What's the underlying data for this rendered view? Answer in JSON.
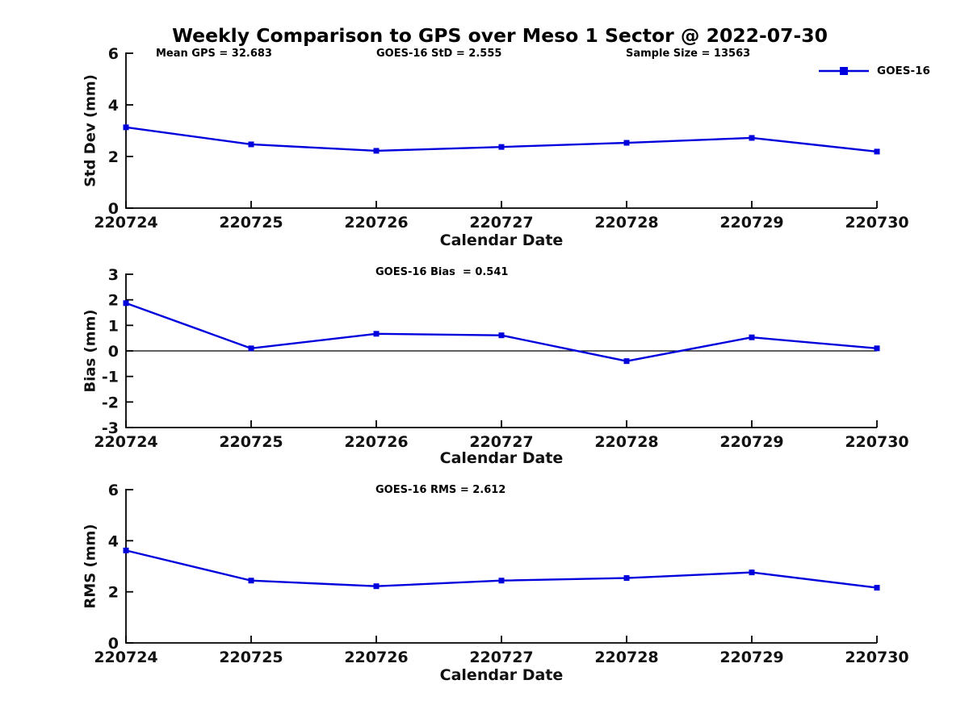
{
  "title": "Weekly Comparison to GPS over Meso 1 Sector @ 2022-07-30",
  "legend": {
    "label": "GOES-16"
  },
  "colors": {
    "series": "#0000dd",
    "axis": "#000000",
    "text": "#111111"
  },
  "categories": [
    "220724",
    "220725",
    "220726",
    "220727",
    "220728",
    "220729",
    "220730"
  ],
  "chart_data": [
    {
      "type": "line",
      "name": "std-dev",
      "title": "",
      "ylabel": "Std Dev (mm)",
      "xlabel": "Calendar Date",
      "ylim": [
        0,
        6
      ],
      "yticks": [
        0,
        2,
        4,
        6
      ],
      "zero_line": false,
      "grid": false,
      "annotations": [
        "Mean GPS = 32.683",
        "GOES-16 StD = 2.555",
        "Sample Size = 13563"
      ],
      "x": [
        "220724",
        "220725",
        "220726",
        "220727",
        "220728",
        "220729",
        "220730"
      ],
      "series": [
        {
          "name": "GOES-16",
          "values": [
            3.13,
            2.47,
            2.22,
            2.37,
            2.53,
            2.72,
            2.19
          ]
        }
      ]
    },
    {
      "type": "line",
      "name": "bias",
      "title": "",
      "ylabel": "Bias (mm)",
      "xlabel": "Calendar Date",
      "ylim": [
        -3,
        3
      ],
      "yticks": [
        3,
        2,
        1,
        0,
        -1,
        -2,
        -3
      ],
      "zero_line": true,
      "grid": false,
      "annotations": [
        "GOES-16 Bias  = 0.541"
      ],
      "x": [
        "220724",
        "220725",
        "220726",
        "220727",
        "220728",
        "220729",
        "220730"
      ],
      "series": [
        {
          "name": "GOES-16",
          "values": [
            1.87,
            0.1,
            0.67,
            0.61,
            -0.4,
            0.53,
            0.1
          ]
        }
      ]
    },
    {
      "type": "line",
      "name": "rms",
      "title": "",
      "ylabel": "RMS (mm)",
      "xlabel": "Calendar Date",
      "ylim": [
        0,
        6
      ],
      "yticks": [
        0,
        2,
        4,
        6
      ],
      "zero_line": false,
      "grid": false,
      "annotations": [
        "GOES-16 RMS = 2.612"
      ],
      "x": [
        "220724",
        "220725",
        "220726",
        "220727",
        "220728",
        "220729",
        "220730"
      ],
      "series": [
        {
          "name": "GOES-16",
          "values": [
            3.62,
            2.44,
            2.22,
            2.44,
            2.54,
            2.76,
            2.16
          ]
        }
      ]
    }
  ]
}
